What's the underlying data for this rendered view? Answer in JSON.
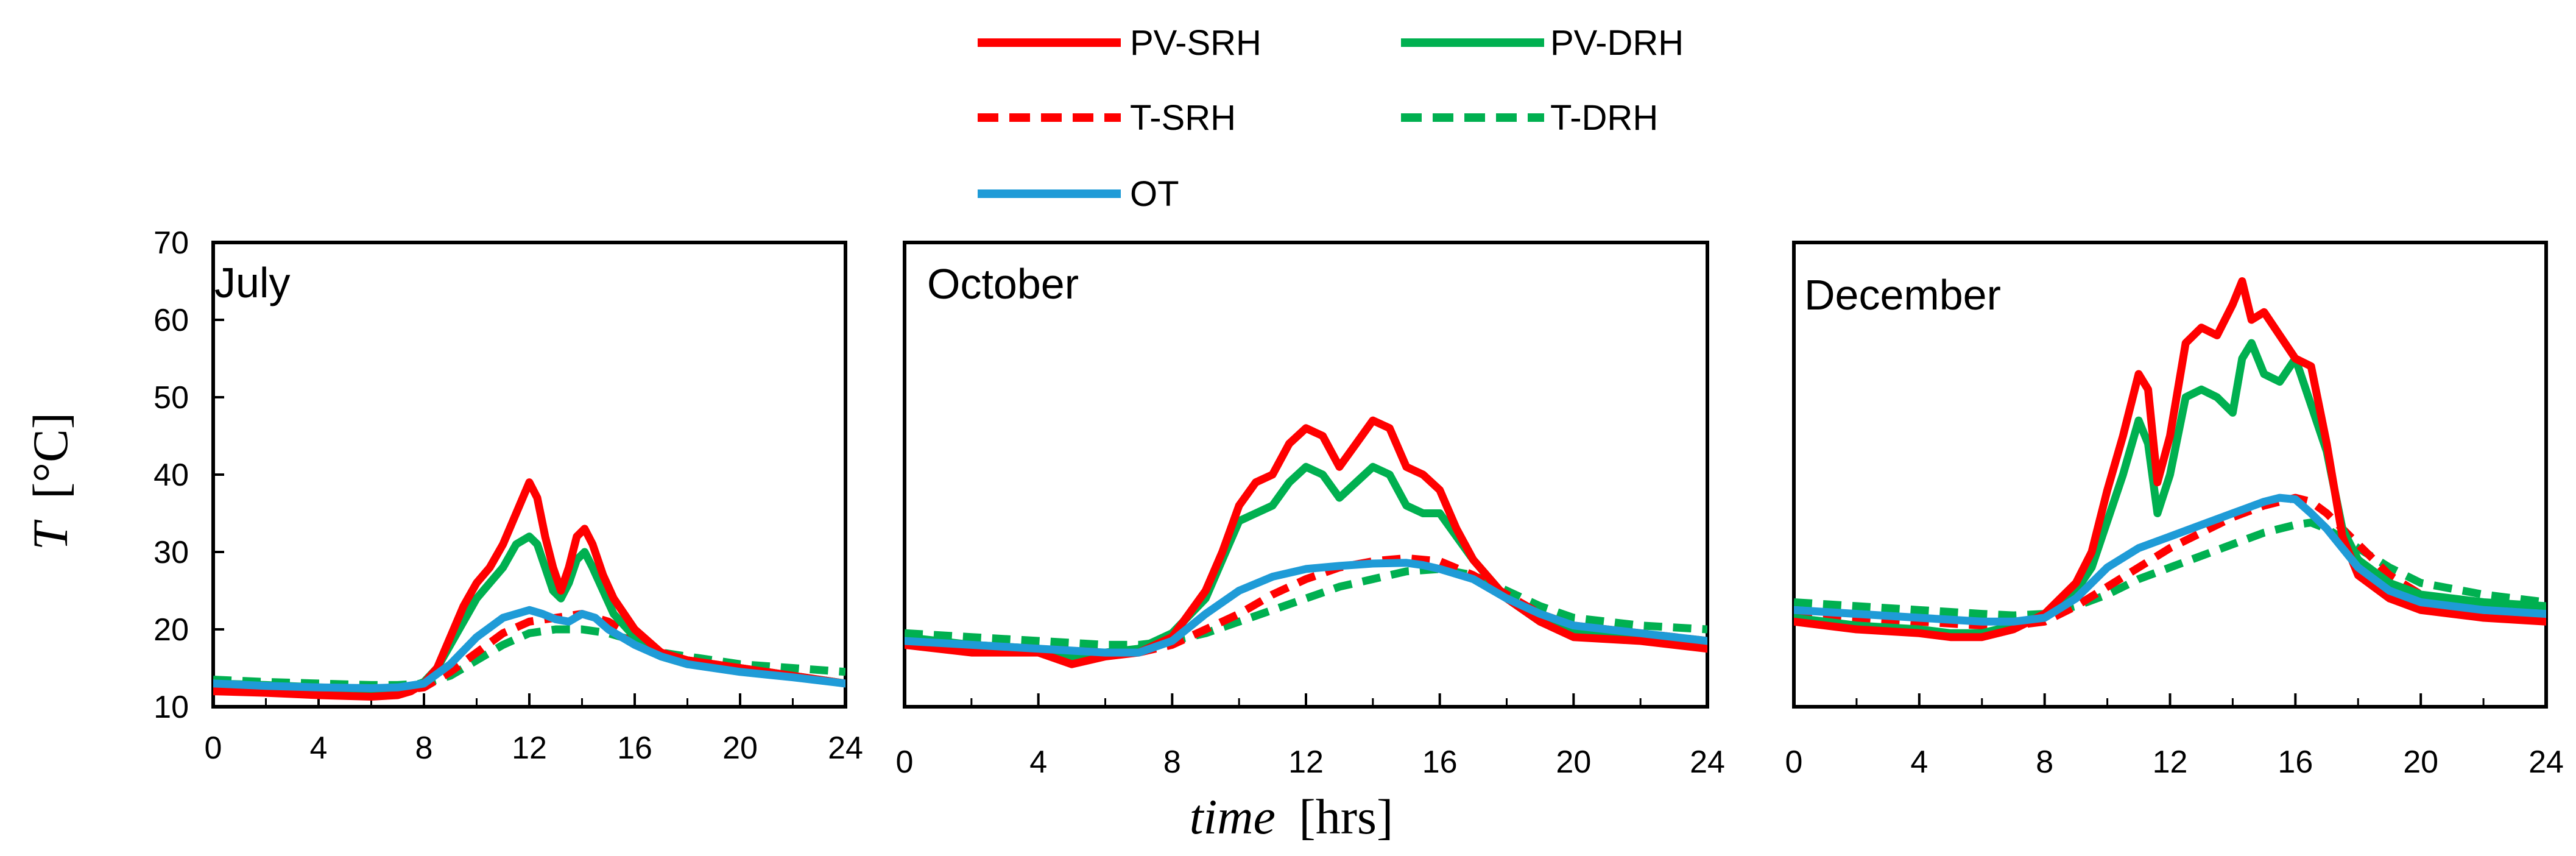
{
  "figure": {
    "ylabel_symbol": "T",
    "ylabel_unit": "[°C]",
    "xlabel_symbol": "time",
    "xlabel_unit": "[hrs]"
  },
  "legend": {
    "placement": "top-center",
    "entries": [
      {
        "name": "PV-SRH",
        "color": "#ff0000",
        "style": "solid"
      },
      {
        "name": "PV-DRH",
        "color": "#00b050",
        "style": "solid"
      },
      {
        "name": "T-SRH",
        "color": "#ff0000",
        "style": "dashed"
      },
      {
        "name": "T-DRH",
        "color": "#00b050",
        "style": "dashed"
      },
      {
        "name": "OT",
        "color": "#1f9bd7",
        "style": "solid"
      }
    ]
  },
  "chart_data": [
    {
      "type": "line",
      "title": "July",
      "xlabel": "time [hrs]",
      "ylabel": "T [°C]",
      "xlim": [
        0,
        24
      ],
      "ylim": [
        10,
        70
      ],
      "x_ticks": [
        "0",
        "4",
        "8",
        "12",
        "16",
        "20",
        "24"
      ],
      "y_ticks": [
        "10",
        "20",
        "30",
        "40",
        "50",
        "60",
        "70"
      ],
      "grid": false,
      "series": [
        {
          "name": "PV-SRH",
          "x": [
            0,
            2,
            4,
            6,
            7,
            7.5,
            8,
            8.5,
            9,
            9.5,
            10,
            10.5,
            11,
            11.5,
            12,
            12.3,
            12.6,
            12.9,
            13.2,
            13.5,
            13.8,
            14.1,
            14.4,
            14.8,
            15.2,
            16,
            17,
            18,
            20,
            22,
            24
          ],
          "y": [
            12,
            11.8,
            11.5,
            11.3,
            11.5,
            12,
            13,
            15,
            19,
            23,
            26,
            28,
            31,
            35,
            39,
            37,
            32,
            28,
            25,
            28,
            32,
            33,
            31,
            27,
            24,
            20,
            17,
            16,
            15,
            14,
            13
          ]
        },
        {
          "name": "PV-DRH",
          "x": [
            0,
            2,
            4,
            6,
            7,
            7.5,
            8,
            8.5,
            9,
            9.5,
            10,
            10.5,
            11,
            11.5,
            12,
            12.3,
            12.6,
            12.9,
            13.2,
            13.5,
            13.8,
            14.1,
            14.4,
            14.8,
            15.2,
            16,
            17,
            18,
            20,
            22,
            24
          ],
          "y": [
            13,
            12.8,
            12.5,
            12.3,
            12.3,
            12.5,
            13.2,
            15,
            18,
            21,
            24,
            26,
            28,
            31,
            32,
            31,
            28,
            25,
            24,
            26,
            29,
            30,
            28,
            25,
            22,
            19,
            16.5,
            15.5,
            15,
            14,
            13
          ]
        },
        {
          "name": "T-SRH",
          "x": [
            0,
            2,
            4,
            6,
            7,
            8,
            9,
            10,
            11,
            12,
            13,
            14,
            15,
            16,
            17,
            18,
            20,
            22,
            24
          ],
          "y": [
            12.5,
            12.3,
            12.1,
            12,
            12.1,
            12.5,
            14.5,
            17,
            19.5,
            21,
            21.5,
            22,
            21,
            19,
            17,
            16,
            15,
            14,
            13
          ]
        },
        {
          "name": "T-DRH",
          "x": [
            0,
            2,
            4,
            6,
            7,
            8,
            9,
            10,
            11,
            12,
            13,
            14,
            15,
            16,
            17,
            18,
            20,
            22,
            24
          ],
          "y": [
            13.5,
            13.2,
            13,
            12.8,
            12.8,
            13,
            14,
            16,
            18,
            19.5,
            20,
            20,
            19.5,
            18.5,
            17,
            16.5,
            15.5,
            15,
            14.5
          ]
        },
        {
          "name": "OT",
          "x": [
            0,
            2,
            4,
            6,
            7,
            8,
            9,
            10,
            11,
            12,
            12.5,
            13,
            13.5,
            14,
            14.5,
            15,
            16,
            17,
            18,
            20,
            22,
            24
          ],
          "y": [
            13,
            12.7,
            12.5,
            12.4,
            12.5,
            13,
            15.5,
            19,
            21.5,
            22.5,
            22,
            21.3,
            21,
            22,
            21.5,
            20,
            18,
            16.5,
            15.5,
            14.5,
            13.8,
            13
          ]
        }
      ]
    },
    {
      "type": "line",
      "title": "October",
      "xlabel": "time [hrs]",
      "ylabel": "T [°C]",
      "xlim": [
        0,
        24
      ],
      "ylim": [
        10,
        70
      ],
      "x_ticks": [
        "0",
        "4",
        "8",
        "12",
        "16",
        "20",
        "24"
      ],
      "y_ticks": [
        "10",
        "20",
        "30",
        "40",
        "50",
        "60",
        "70"
      ],
      "grid": false,
      "series": [
        {
          "name": "PV-SRH",
          "x": [
            0,
            2,
            4,
            5,
            6,
            7,
            8,
            9,
            9.5,
            10,
            10.5,
            11,
            11.5,
            12,
            12.5,
            13,
            13.5,
            14,
            14.5,
            15,
            15.5,
            16,
            16.5,
            17,
            18,
            19,
            20,
            22,
            23,
            24
          ],
          "y": [
            18,
            17,
            17,
            15.5,
            16.5,
            17,
            19,
            25,
            30,
            36,
            39,
            40,
            44,
            46,
            45,
            41,
            44,
            47,
            46,
            41,
            40,
            38,
            33,
            29,
            24,
            21,
            19,
            18.5,
            18,
            17.5
          ]
        },
        {
          "name": "PV-DRH",
          "x": [
            0,
            2,
            4,
            5,
            6,
            7,
            8,
            9,
            9.5,
            10,
            10.5,
            11,
            11.5,
            12,
            12.5,
            13,
            13.5,
            14,
            14.5,
            15,
            15.5,
            16,
            16.5,
            17,
            18,
            19,
            20,
            22,
            23,
            24
          ],
          "y": [
            19,
            18,
            17.5,
            16.5,
            17,
            17.5,
            19.5,
            24,
            29,
            34,
            35,
            36,
            39,
            41,
            40,
            37,
            39,
            41,
            40,
            36,
            35,
            35,
            32,
            29,
            24,
            21,
            20,
            19,
            18.5,
            18
          ]
        },
        {
          "name": "T-SRH",
          "x": [
            0,
            2,
            4,
            6,
            7,
            8,
            9,
            10,
            11,
            12,
            13,
            14,
            15,
            16,
            17,
            18,
            19,
            20,
            22,
            24
          ],
          "y": [
            18.5,
            18,
            17.5,
            17,
            17,
            18,
            20,
            22,
            24.5,
            26.5,
            28,
            28.8,
            29.2,
            28.8,
            27,
            24.5,
            22,
            20.5,
            19.5,
            18.5
          ]
        },
        {
          "name": "T-DRH",
          "x": [
            0,
            2,
            4,
            6,
            7,
            8,
            9,
            10,
            11,
            12,
            13,
            14,
            15,
            16,
            17,
            18,
            19,
            20,
            22,
            24
          ],
          "y": [
            19.5,
            19,
            18.5,
            18,
            18,
            18.5,
            19.5,
            21,
            22.5,
            24,
            25.5,
            26.5,
            27.5,
            27.8,
            27,
            25,
            23,
            21.5,
            20.5,
            20
          ]
        },
        {
          "name": "OT",
          "x": [
            0,
            2,
            4,
            6,
            7,
            8,
            9,
            10,
            11,
            12,
            13,
            14,
            15,
            15.5,
            16,
            17,
            18,
            19,
            20,
            22,
            24
          ],
          "y": [
            18.5,
            18,
            17.5,
            17,
            17,
            18.5,
            22,
            25,
            26.8,
            27.8,
            28.2,
            28.5,
            28.6,
            28.3,
            27.8,
            26.5,
            24,
            22,
            20.5,
            19.5,
            18.5
          ]
        }
      ]
    },
    {
      "type": "line",
      "title": "December",
      "xlabel": "time [hrs]",
      "ylabel": "T [°C]",
      "xlim": [
        0,
        24
      ],
      "ylim": [
        10,
        70
      ],
      "x_ticks": [
        "0",
        "4",
        "8",
        "12",
        "16",
        "20",
        "24"
      ],
      "y_ticks": [
        "10",
        "20",
        "30",
        "40",
        "50",
        "60",
        "70"
      ],
      "grid": false,
      "series": [
        {
          "name": "PV-SRH",
          "x": [
            0,
            2,
            4,
            5,
            6,
            7,
            8,
            9,
            9.5,
            10,
            10.5,
            11,
            11.3,
            11.6,
            12,
            12.5,
            13,
            13.5,
            14,
            14.3,
            14.6,
            15,
            15.5,
            16,
            16.5,
            17,
            17.5,
            18,
            19,
            20,
            22,
            24
          ],
          "y": [
            21,
            20,
            19.5,
            19,
            19,
            20,
            22,
            26,
            30,
            38,
            45,
            53,
            51,
            39,
            45,
            57,
            59,
            58,
            62,
            65,
            60,
            61,
            58,
            55,
            54,
            44,
            32,
            27,
            24,
            22.5,
            21.5,
            21
          ]
        },
        {
          "name": "PV-DRH",
          "x": [
            0,
            2,
            4,
            5,
            6,
            7,
            8,
            9,
            9.5,
            10,
            10.5,
            11,
            11.3,
            11.6,
            12,
            12.5,
            13,
            13.5,
            14,
            14.3,
            14.6,
            15,
            15.5,
            16,
            16.5,
            17,
            17.5,
            18,
            19,
            20,
            22,
            24
          ],
          "y": [
            21.5,
            20.5,
            20,
            19.5,
            19.5,
            20.5,
            22,
            25,
            28,
            34,
            40,
            47,
            44,
            35,
            40,
            50,
            51,
            50,
            48,
            55,
            57,
            53,
            52,
            55,
            49,
            43,
            33,
            29,
            26,
            24.5,
            23.5,
            23
          ]
        },
        {
          "name": "T-SRH",
          "x": [
            0,
            2,
            4,
            6,
            7,
            8,
            9,
            10,
            11,
            12,
            13,
            14,
            15,
            16,
            16.5,
            17,
            18,
            19,
            20,
            22,
            24
          ],
          "y": [
            22,
            21.5,
            21,
            20.5,
            20.5,
            21,
            23,
            25.5,
            28,
            30.5,
            32.5,
            34.5,
            36,
            37,
            36.5,
            35,
            31,
            27,
            24.5,
            23,
            22
          ]
        },
        {
          "name": "T-DRH",
          "x": [
            0,
            2,
            4,
            6,
            7,
            8,
            9,
            10,
            11,
            12,
            13,
            14,
            15,
            16,
            16.5,
            17,
            18,
            19,
            20,
            22,
            24
          ],
          "y": [
            23.5,
            23,
            22.5,
            22,
            21.8,
            22,
            23,
            24.5,
            26.5,
            28,
            29.5,
            31,
            32.5,
            33.5,
            33.8,
            33,
            30.5,
            28,
            26,
            24.5,
            23.5
          ]
        },
        {
          "name": "OT",
          "x": [
            0,
            2,
            4,
            6,
            7,
            8,
            9,
            10,
            11,
            12,
            13,
            14,
            15,
            15.5,
            16,
            16.5,
            17,
            18,
            19,
            20,
            22,
            24
          ],
          "y": [
            22.5,
            22,
            21.5,
            21,
            21,
            21.5,
            24,
            28,
            30.5,
            32,
            33.5,
            35,
            36.5,
            37,
            36.8,
            35,
            33,
            28,
            25,
            23.5,
            22.5,
            22
          ]
        }
      ]
    }
  ]
}
